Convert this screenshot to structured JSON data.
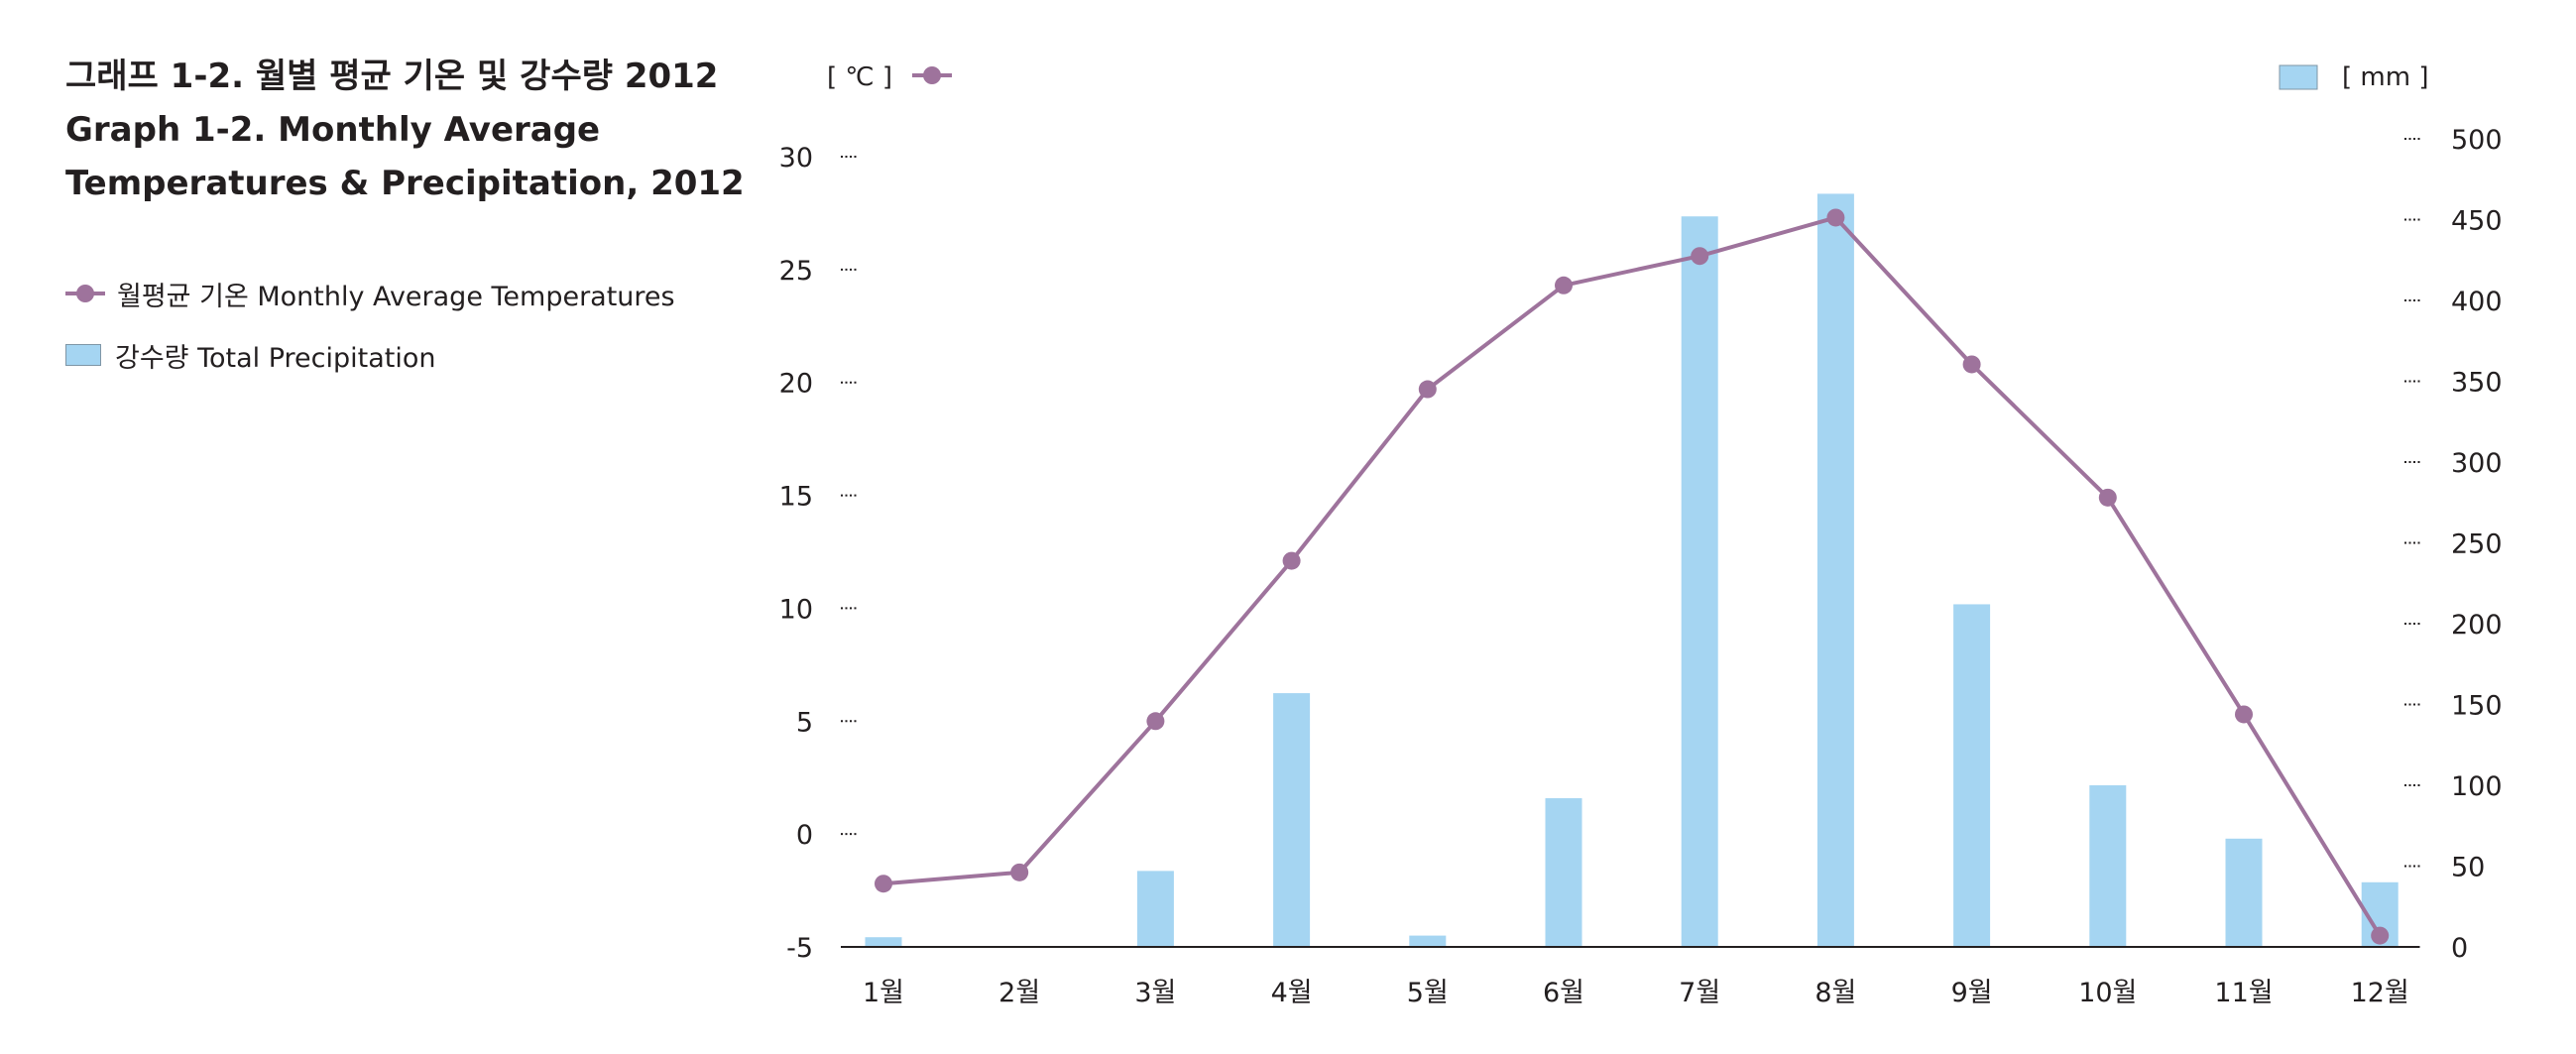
{
  "title": {
    "korean": "그래프 1-2. 월별 평균 기온 및 강수량 2012",
    "english_line1": "Graph 1-2. Monthly Average",
    "english_line2": "Temperatures & Precipitation, 2012"
  },
  "legend": {
    "temperature": "월평균 기온  Monthly Average Temperatures",
    "precipitation": "강수량  Total Precipitation"
  },
  "colors": {
    "temperature_line": "#9e739c",
    "precipitation_bar": "#a5d5f2",
    "axis": "#231f20"
  },
  "chart_data": {
    "type": "bar",
    "categories": [
      "1월",
      "2월",
      "3월",
      "4월",
      "5월",
      "6월",
      "7월",
      "8월",
      "9월",
      "10월",
      "11월",
      "12월"
    ],
    "left_axis_unit": "[ ℃ ]",
    "right_axis_unit": "[ mm ]",
    "left_ticks": [
      30,
      25,
      20,
      15,
      10,
      5,
      0,
      -5
    ],
    "right_ticks": [
      500,
      450,
      400,
      350,
      300,
      250,
      200,
      150,
      100,
      50,
      0
    ],
    "y_left_lim": [
      -5,
      30
    ],
    "y_right_lim": [
      0,
      500
    ],
    "series": [
      {
        "name": "월평균 기온  Monthly Average Temperatures",
        "type": "line",
        "axis": "left",
        "values": [
          -2.2,
          -1.7,
          5.0,
          12.1,
          19.7,
          24.3,
          25.6,
          27.3,
          20.8,
          14.9,
          5.3,
          -4.5
        ]
      },
      {
        "name": "강수량  Total Precipitation",
        "type": "bar",
        "axis": "right",
        "values": [
          6,
          0,
          47,
          157,
          7,
          92,
          452,
          466,
          212,
          100,
          67,
          40
        ]
      }
    ],
    "grid": false,
    "legend_position": "left"
  }
}
